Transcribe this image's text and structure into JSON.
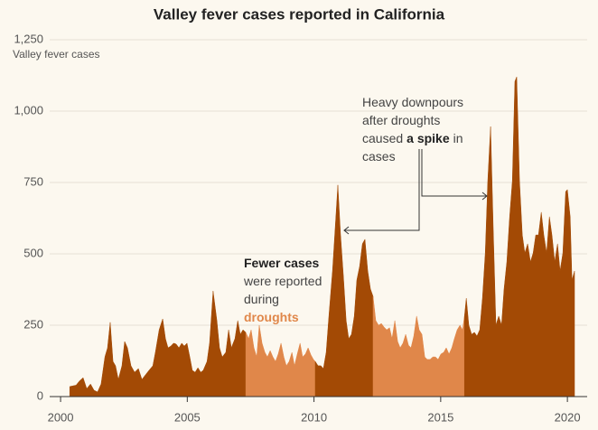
{
  "chart_data": {
    "type": "area",
    "title": "Valley fever cases reported in California",
    "y_label": "Valley fever cases",
    "xlim": [
      1999.57,
      2020.78
    ],
    "xticks": [
      2000,
      2005,
      2010,
      2015,
      2020
    ],
    "ylim": [
      0,
      1250
    ],
    "yticks": [
      0,
      250,
      500,
      750,
      {
        "value": 1000,
        "label": "1,000"
      },
      {
        "value": 1250,
        "label": "1,250"
      }
    ],
    "grid": true,
    "series": [
      {
        "color": "#a34a05",
        "x": [
          2000.36,
          2000.61,
          2000.75,
          2000.89,
          2001.03,
          2001.18,
          2001.32,
          2001.46,
          2001.6,
          2001.75,
          2001.85,
          2001.96,
          2002.07,
          2002.17,
          2002.28,
          2002.42,
          2002.53,
          2002.64,
          2002.78,
          2002.92,
          2003.07,
          2003.21,
          2003.35,
          2003.49,
          2003.64,
          2003.74,
          2003.89,
          2004.03,
          2004.14,
          2004.24,
          2004.35,
          2004.46,
          2004.56,
          2004.67,
          2004.78,
          2004.88,
          2004.99,
          2005.1,
          2005.2,
          2005.31,
          2005.42,
          2005.53,
          2005.63,
          2005.78,
          2005.88,
          2006.02,
          2006.17,
          2006.27,
          2006.38,
          2006.52,
          2006.63,
          2006.74,
          2006.88,
          2006.99,
          2007.09,
          2007.2,
          2007.31
        ],
        "values": [
          35,
          40,
          55,
          66,
          28,
          44,
          22,
          16,
          44,
          140,
          170,
          260,
          123,
          108,
          60,
          108,
          193,
          171,
          108,
          85,
          98,
          60,
          76,
          92,
          108,
          155,
          234,
          272,
          203,
          171,
          177,
          187,
          184,
          171,
          187,
          177,
          187,
          139,
          92,
          85,
          101,
          85,
          92,
          123,
          187,
          370,
          266,
          171,
          139,
          155,
          234,
          171,
          203,
          266,
          218,
          234,
          225
        ]
      },
      {
        "color": "#e0874a",
        "x": [
          2007.31,
          2007.42,
          2007.52,
          2007.63,
          2007.74,
          2007.84,
          2007.95,
          2008.06,
          2008.16,
          2008.27,
          2008.38,
          2008.48,
          2008.59,
          2008.7,
          2008.81,
          2008.91,
          2009.02,
          2009.13,
          2009.23,
          2009.34,
          2009.45,
          2009.55,
          2009.66,
          2009.77,
          2009.88,
          2009.98,
          2010.05
        ],
        "values": [
          225,
          203,
          234,
          171,
          139,
          250,
          187,
          155,
          139,
          161,
          139,
          123,
          149,
          187,
          139,
          108,
          123,
          155,
          108,
          149,
          187,
          139,
          149,
          171,
          146,
          130,
          123
        ]
      },
      {
        "color": "#a34a05",
        "x": [
          2010.05,
          2010.16,
          2010.27,
          2010.37,
          2010.48,
          2010.59,
          2010.73,
          2010.84,
          2010.94,
          2011.05,
          2011.16,
          2011.27,
          2011.37,
          2011.48,
          2011.59,
          2011.69,
          2011.8,
          2011.91,
          2012.01,
          2012.12,
          2012.23,
          2012.33
        ],
        "values": [
          123,
          108,
          108,
          98,
          155,
          282,
          440,
          598,
          741,
          566,
          424,
          266,
          203,
          218,
          282,
          408,
          456,
          535,
          551,
          440,
          377,
          351
        ]
      },
      {
        "color": "#e0874a",
        "x": [
          2012.33,
          2012.44,
          2012.55,
          2012.66,
          2012.76,
          2012.87,
          2012.98,
          2013.08,
          2013.19,
          2013.3,
          2013.4,
          2013.51,
          2013.62,
          2013.73,
          2013.83,
          2013.94,
          2014.05,
          2014.15,
          2014.26,
          2014.37,
          2014.47,
          2014.58,
          2014.69,
          2014.79,
          2014.9,
          2015.01,
          2015.12,
          2015.22,
          2015.33,
          2015.44,
          2015.54,
          2015.65,
          2015.76,
          2015.86,
          2015.94
        ],
        "values": [
          351,
          266,
          250,
          256,
          244,
          234,
          241,
          203,
          266,
          193,
          171,
          187,
          218,
          180,
          171,
          212,
          282,
          234,
          218,
          139,
          130,
          130,
          139,
          139,
          130,
          149,
          155,
          171,
          149,
          171,
          203,
          234,
          250,
          234,
          282
        ]
      },
      {
        "color": "#a34a05",
        "x": [
          2015.94,
          2016.01,
          2016.11,
          2016.22,
          2016.33,
          2016.43,
          2016.54,
          2016.65,
          2016.76,
          2016.86,
          2016.97,
          2017.08,
          2017.18,
          2017.29,
          2017.4,
          2017.5,
          2017.61,
          2017.72,
          2017.83,
          2017.93,
          2018.0,
          2018.11,
          2018.22,
          2018.32,
          2018.43,
          2018.54,
          2018.65,
          2018.75,
          2018.86,
          2018.97,
          2019.07,
          2019.18,
          2019.29,
          2019.39,
          2019.5,
          2019.61,
          2019.71,
          2019.82,
          2019.93,
          2020.0,
          2020.11,
          2020.18,
          2020.28
        ],
        "values": [
          282,
          345,
          250,
          218,
          225,
          212,
          234,
          345,
          503,
          756,
          946,
          566,
          250,
          282,
          250,
          377,
          472,
          630,
          756,
          1104,
          1120,
          756,
          566,
          503,
          535,
          472,
          503,
          566,
          566,
          646,
          566,
          503,
          630,
          566,
          472,
          535,
          440,
          503,
          718,
          725,
          630,
          408,
          440
        ]
      }
    ],
    "annotations": [
      {
        "color": "#e0874a",
        "lines": [
          [
            "Fewer cases"
          ],
          [
            "were reported"
          ],
          [
            "during"
          ],
          [
            "droughts"
          ]
        ]
      },
      {
        "lines": [
          [
            "Heavy downpours"
          ],
          [
            "after droughts"
          ],
          [
            "caused",
            "a spike",
            "in"
          ],
          [
            "cases"
          ]
        ]
      }
    ]
  }
}
